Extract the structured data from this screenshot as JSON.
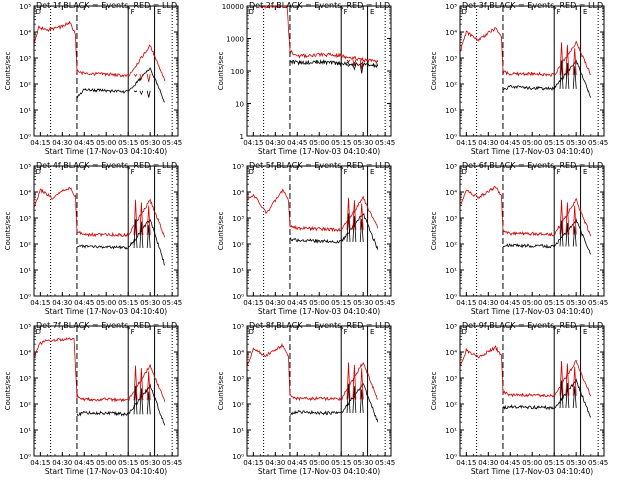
{
  "figure": {
    "background": "#ffffff"
  },
  "common": {
    "xlabel": "Start Time (17-Nov-03 04:10:40)",
    "ylabel": "Counts/sec",
    "x_ticks": [
      "04:15",
      "04:30",
      "04:45",
      "05:00",
      "05:15",
      "05:30",
      "05:45"
    ],
    "x_range": [
      "04:10:40",
      "05:49:00"
    ],
    "y_scale": "log",
    "series_colors": {
      "events": "#000000",
      "lld": "#d00000"
    },
    "marker_label": "E"
  },
  "chart_data": [
    {
      "id": "det1f",
      "type": "line",
      "title": "Det 1f BLACK = Events, RED = LLD",
      "ylim": [
        1,
        100000
      ],
      "y_ticks": [
        "10⁰",
        "10¹",
        "10²",
        "10³",
        "10⁴",
        "10⁵"
      ],
      "x": [
        "04:11",
        "04:14",
        "04:20",
        "04:30",
        "04:35",
        "04:39",
        "04:40",
        "04:45",
        "05:00",
        "05:15",
        "05:30",
        "05:40"
      ],
      "series": [
        {
          "name": "Events",
          "values": [
            null,
            null,
            null,
            null,
            null,
            null,
            30,
            60,
            55,
            50,
            400,
            20
          ]
        },
        {
          "name": "LLD",
          "values": [
            4000,
            15000,
            12000,
            16000,
            24000,
            8000,
            300,
            250,
            240,
            200,
            3000,
            130
          ]
        }
      ]
    },
    {
      "id": "det2f",
      "type": "line",
      "title": "Det 2f BLACK = Events, RED = LLD",
      "ylim": [
        1,
        10000
      ],
      "y_ticks": [
        "1",
        "10",
        "100",
        "1000",
        "10000"
      ],
      "x": [
        "04:11",
        "04:20",
        "04:30",
        "04:38",
        "04:40",
        "04:45",
        "05:00",
        "05:15",
        "05:30",
        "05:40"
      ],
      "series": [
        {
          "name": "Events",
          "values": [
            null,
            null,
            null,
            null,
            200,
            180,
            190,
            170,
            160,
            140
          ]
        },
        {
          "name": "LLD",
          "values": [
            null,
            10000,
            10000,
            10000,
            400,
            280,
            320,
            300,
            220,
            190
          ]
        }
      ]
    },
    {
      "id": "det3f",
      "type": "line",
      "title": "Det 3f BLACK = Events, RED = LLD",
      "ylim": [
        1,
        100000
      ],
      "y_ticks": [
        "10⁰",
        "10¹",
        "10²",
        "10³",
        "10⁴",
        "10⁵"
      ],
      "x": [
        "04:11",
        "04:15",
        "04:23",
        "04:35",
        "04:39",
        "04:40",
        "04:45",
        "05:00",
        "05:15",
        "05:30",
        "05:40"
      ],
      "series": [
        {
          "name": "Events",
          "values": [
            null,
            null,
            null,
            null,
            null,
            60,
            80,
            70,
            65,
            800,
            30
          ]
        },
        {
          "name": "LLD",
          "values": [
            2000,
            10000,
            5000,
            14000,
            6000,
            300,
            240,
            250,
            220,
            4000,
            230
          ]
        }
      ]
    },
    {
      "id": "det4f",
      "type": "line",
      "title": "Det 4f BLACK = Events, RED = LLD",
      "ylim": [
        1,
        100000
      ],
      "y_ticks": [
        "10⁰",
        "10¹",
        "10²",
        "10³",
        "10⁴",
        "10⁵"
      ],
      "x": [
        "04:11",
        "04:15",
        "04:23",
        "04:35",
        "04:39",
        "04:40",
        "04:45",
        "05:00",
        "05:15",
        "05:30",
        "05:40"
      ],
      "series": [
        {
          "name": "Events",
          "values": [
            null,
            null,
            null,
            null,
            null,
            80,
            80,
            75,
            70,
            900,
            15
          ]
        },
        {
          "name": "LLD",
          "values": [
            2500,
            12000,
            6000,
            15000,
            7000,
            300,
            230,
            230,
            220,
            5000,
            180
          ]
        }
      ]
    },
    {
      "id": "det5f",
      "type": "line",
      "title": "Det 5f BLACK = Events, RED = LLD",
      "ylim": [
        1,
        100000
      ],
      "y_ticks": [
        "10⁰",
        "10¹",
        "10²",
        "10³",
        "10⁴",
        "10⁵"
      ],
      "x": [
        "04:11",
        "04:15",
        "04:24",
        "04:35",
        "04:39",
        "04:40",
        "04:45",
        "05:00",
        "05:15",
        "05:30",
        "05:40"
      ],
      "series": [
        {
          "name": "Events",
          "values": [
            null,
            null,
            null,
            null,
            null,
            150,
            140,
            130,
            120,
            1500,
            60
          ]
        },
        {
          "name": "LLD",
          "values": [
            5000,
            8000,
            1500,
            12000,
            5000,
            500,
            400,
            380,
            350,
            6000,
            400
          ]
        }
      ]
    },
    {
      "id": "det6f",
      "type": "line",
      "title": "Det 6f BLACK = Events, RED = LLD",
      "ylim": [
        1,
        100000
      ],
      "y_ticks": [
        "10⁰",
        "10¹",
        "10²",
        "10³",
        "10⁴",
        "10⁵"
      ],
      "x": [
        "04:11",
        "04:15",
        "04:23",
        "04:35",
        "04:39",
        "04:40",
        "04:45",
        "05:00",
        "05:15",
        "05:30",
        "05:40"
      ],
      "series": [
        {
          "name": "Events",
          "values": [
            null,
            null,
            null,
            null,
            null,
            80,
            90,
            85,
            80,
            800,
            40
          ]
        },
        {
          "name": "LLD",
          "values": [
            3000,
            12000,
            6000,
            16000,
            7000,
            320,
            250,
            250,
            230,
            5000,
            200
          ]
        }
      ]
    },
    {
      "id": "det7f",
      "type": "line",
      "title": "Det 7f BLACK = Events, RED = LLD",
      "ylim": [
        1,
        100000
      ],
      "y_ticks": [
        "10⁰",
        "10¹",
        "10²",
        "10³",
        "10⁴",
        "10⁵"
      ],
      "x": [
        "04:11",
        "04:14",
        "04:20",
        "04:30",
        "04:38",
        "04:40",
        "04:45",
        "05:00",
        "05:15",
        "05:30",
        "05:40"
      ],
      "series": [
        {
          "name": "Events",
          "values": [
            null,
            null,
            null,
            null,
            null,
            40,
            45,
            45,
            40,
            500,
            15
          ]
        },
        {
          "name": "LLD",
          "values": [
            6000,
            20000,
            28000,
            30000,
            32000,
            200,
            150,
            150,
            140,
            3000,
            120
          ]
        }
      ]
    },
    {
      "id": "det8f",
      "type": "line",
      "title": "Det 8f BLACK = Events, RED = LLD",
      "ylim": [
        1,
        100000
      ],
      "y_ticks": [
        "10⁰",
        "10¹",
        "10²",
        "10³",
        "10⁴",
        "10⁵"
      ],
      "x": [
        "04:11",
        "04:15",
        "04:23",
        "04:35",
        "04:39",
        "04:40",
        "04:45",
        "05:00",
        "05:15",
        "05:30",
        "05:40"
      ],
      "series": [
        {
          "name": "Events",
          "values": [
            null,
            null,
            null,
            null,
            null,
            40,
            50,
            45,
            45,
            600,
            20
          ]
        },
        {
          "name": "LLD",
          "values": [
            3000,
            14000,
            7000,
            18000,
            7000,
            200,
            160,
            160,
            150,
            4000,
            150
          ]
        }
      ]
    },
    {
      "id": "det9f",
      "type": "line",
      "title": "Det 9f BLACK = Events, RED = LLD",
      "ylim": [
        1,
        100000
      ],
      "y_ticks": [
        "10⁰",
        "10¹",
        "10²",
        "10³",
        "10⁴",
        "10⁵"
      ],
      "x": [
        "04:11",
        "04:15",
        "04:23",
        "04:35",
        "04:39",
        "04:40",
        "04:45",
        "05:00",
        "05:15",
        "05:30",
        "05:40"
      ],
      "series": [
        {
          "name": "Events",
          "values": [
            null,
            null,
            null,
            null,
            null,
            70,
            80,
            75,
            70,
            800,
            30
          ]
        },
        {
          "name": "LLD",
          "values": [
            3000,
            12000,
            6000,
            15000,
            7000,
            280,
            220,
            220,
            210,
            4500,
            200
          ]
        }
      ]
    }
  ]
}
